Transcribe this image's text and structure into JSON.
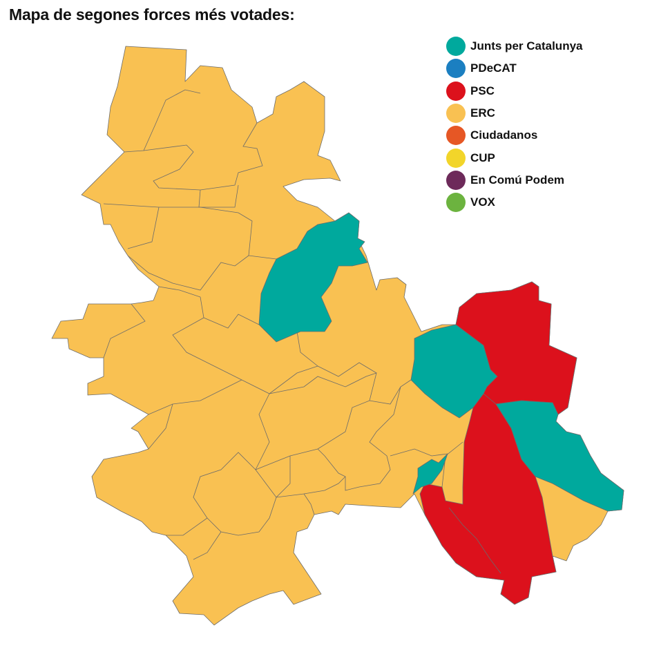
{
  "title": "Mapa de segones forces més votades:",
  "legend": [
    {
      "label": "Junts per Catalunya",
      "color": "#00a99d"
    },
    {
      "label": "PDeCAT",
      "color": "#1b7fc1"
    },
    {
      "label": "PSC",
      "color": "#dc111c"
    },
    {
      "label": "ERC",
      "color": "#f9c152"
    },
    {
      "label": "Ciudadanos",
      "color": "#e65725"
    },
    {
      "label": "CUP",
      "color": "#f2d52a"
    },
    {
      "label": "En Comú Podem",
      "color": "#6d2a5a"
    },
    {
      "label": "VOX",
      "color": "#6cb33f"
    }
  ]
}
